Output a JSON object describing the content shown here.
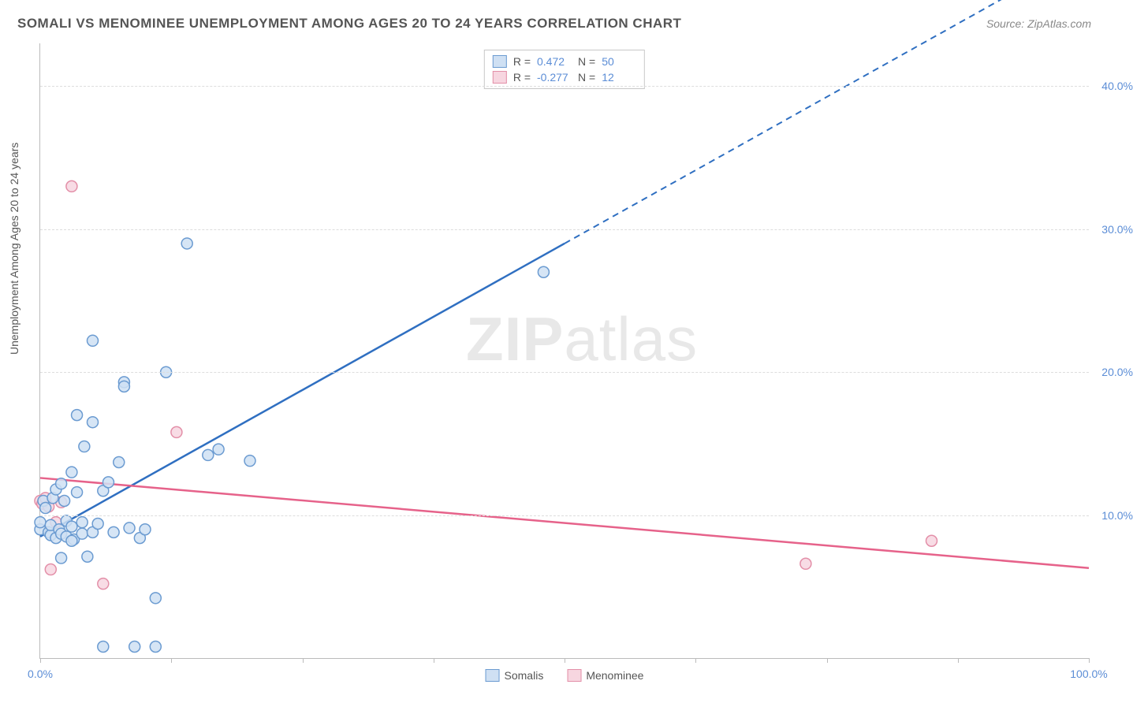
{
  "title": "SOMALI VS MENOMINEE UNEMPLOYMENT AMONG AGES 20 TO 24 YEARS CORRELATION CHART",
  "source": "Source: ZipAtlas.com",
  "ylabel": "Unemployment Among Ages 20 to 24 years",
  "watermark_bold": "ZIP",
  "watermark_light": "atlas",
  "chart": {
    "type": "scatter",
    "xlim": [
      0,
      100
    ],
    "ylim": [
      0,
      43
    ],
    "xtick_labels": [
      "0.0%",
      "100.0%"
    ],
    "xtick_positions": [
      0,
      100
    ],
    "xtick_minor": [
      12.5,
      25,
      37.5,
      50,
      62.5,
      75,
      87.5
    ],
    "ytick_labels": [
      "10.0%",
      "20.0%",
      "30.0%",
      "40.0%"
    ],
    "ytick_positions": [
      10,
      20,
      30,
      40
    ],
    "grid_color": "#dddddd",
    "axis_color": "#bbbbbb",
    "background": "#ffffff",
    "series": [
      {
        "name": "Somalis",
        "color_fill": "#cfe0f3",
        "color_stroke": "#6b9bd1",
        "marker_radius": 7,
        "r_value": "0.472",
        "n_value": "50",
        "trend": {
          "x1": 0,
          "y1": 8.5,
          "x2": 50,
          "y2": 29,
          "x_dash_to": 100,
          "color": "#2f6fc1"
        },
        "points": [
          [
            0,
            9
          ],
          [
            0,
            9.5
          ],
          [
            0.3,
            11
          ],
          [
            0.5,
            10.5
          ],
          [
            0.8,
            8.8
          ],
          [
            1,
            8.6
          ],
          [
            1,
            9.3
          ],
          [
            1.2,
            11.2
          ],
          [
            1.5,
            8.4
          ],
          [
            1.5,
            11.8
          ],
          [
            1.8,
            9
          ],
          [
            2,
            12.2
          ],
          [
            2,
            8.7
          ],
          [
            2.3,
            11
          ],
          [
            2.5,
            8.5
          ],
          [
            2.5,
            9.6
          ],
          [
            3,
            9.2
          ],
          [
            3,
            13
          ],
          [
            3.2,
            8.3
          ],
          [
            3.5,
            11.6
          ],
          [
            3.5,
            17
          ],
          [
            4,
            8.7
          ],
          [
            4,
            9.5
          ],
          [
            4.2,
            14.8
          ],
          [
            4.5,
            7.1
          ],
          [
            5,
            8.8
          ],
          [
            5,
            22.2
          ],
          [
            5,
            16.5
          ],
          [
            5.5,
            9.4
          ],
          [
            6,
            11.7
          ],
          [
            6,
            0.8
          ],
          [
            6.5,
            12.3
          ],
          [
            7,
            8.8
          ],
          [
            7.5,
            13.7
          ],
          [
            8,
            19.3
          ],
          [
            8,
            19
          ],
          [
            8.5,
            9.1
          ],
          [
            9,
            0.8
          ],
          [
            9.5,
            8.4
          ],
          [
            10,
            9
          ],
          [
            11,
            0.8
          ],
          [
            11,
            4.2
          ],
          [
            12,
            20
          ],
          [
            14,
            29
          ],
          [
            16,
            14.2
          ],
          [
            17,
            14.6
          ],
          [
            20,
            13.8
          ],
          [
            48,
            27
          ],
          [
            3,
            8.2
          ],
          [
            2,
            7
          ]
        ]
      },
      {
        "name": "Menominee",
        "color_fill": "#f7d6e0",
        "color_stroke": "#e38fa8",
        "marker_radius": 7,
        "r_value": "-0.277",
        "n_value": "12",
        "trend": {
          "x1": 0,
          "y1": 12.6,
          "x2": 100,
          "y2": 6.3,
          "color": "#e6628a"
        },
        "points": [
          [
            0,
            11
          ],
          [
            0.2,
            10.8
          ],
          [
            0.5,
            11.2
          ],
          [
            1,
            6.2
          ],
          [
            1.5,
            9.5
          ],
          [
            2,
            10.9
          ],
          [
            3,
            33
          ],
          [
            6,
            5.2
          ],
          [
            13,
            15.8
          ],
          [
            73,
            6.6
          ],
          [
            85,
            8.2
          ],
          [
            0.8,
            10.6
          ]
        ]
      }
    ]
  },
  "legend_bottom": [
    "Somalis",
    "Menominee"
  ]
}
